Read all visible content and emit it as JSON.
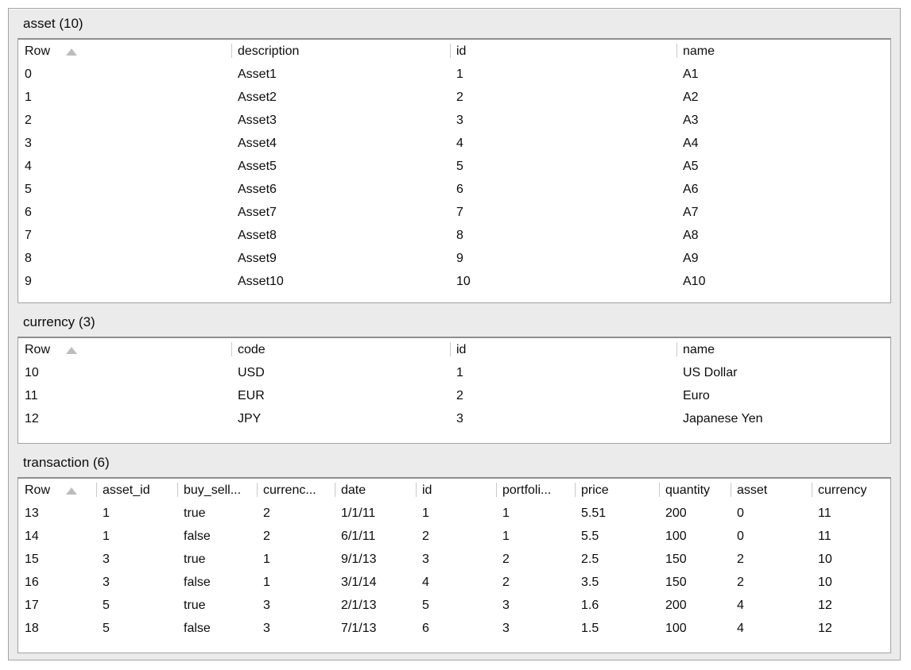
{
  "tables": [
    {
      "title": "asset (10)",
      "sort": {
        "column": "Row",
        "direction": "ascending"
      },
      "columns": [
        "Row",
        "description",
        "id",
        "name"
      ],
      "rows": [
        [
          "0",
          "Asset1",
          "1",
          "A1"
        ],
        [
          "1",
          "Asset2",
          "2",
          "A2"
        ],
        [
          "2",
          "Asset3",
          "3",
          "A3"
        ],
        [
          "3",
          "Asset4",
          "4",
          "A4"
        ],
        [
          "4",
          "Asset5",
          "5",
          "A5"
        ],
        [
          "5",
          "Asset6",
          "6",
          "A6"
        ],
        [
          "6",
          "Asset7",
          "7",
          "A7"
        ],
        [
          "7",
          "Asset8",
          "8",
          "A8"
        ],
        [
          "8",
          "Asset9",
          "9",
          "A9"
        ],
        [
          "9",
          "Asset10",
          "10",
          "A10"
        ]
      ]
    },
    {
      "title": "currency (3)",
      "sort": {
        "column": "Row",
        "direction": "ascending"
      },
      "columns": [
        "Row",
        "code",
        "id",
        "name"
      ],
      "rows": [
        [
          "10",
          "USD",
          "1",
          "US Dollar"
        ],
        [
          "11",
          "EUR",
          "2",
          "Euro"
        ],
        [
          "12",
          "JPY",
          "3",
          "Japanese Yen"
        ]
      ]
    },
    {
      "title": "transaction (6)",
      "sort": {
        "column": "Row",
        "direction": "ascending"
      },
      "columns": [
        "Row",
        "asset_id",
        "buy_sell...",
        "currenc...",
        "date",
        "id",
        "portfoli...",
        "price",
        "quantity",
        "asset",
        "currency"
      ],
      "rows": [
        [
          "13",
          "1",
          "true",
          "2",
          "1/1/11",
          "1",
          "1",
          "5.51",
          "200",
          "0",
          "11"
        ],
        [
          "14",
          "1",
          "false",
          "2",
          "6/1/11",
          "2",
          "1",
          "5.5",
          "100",
          "0",
          "11"
        ],
        [
          "15",
          "3",
          "true",
          "1",
          "9/1/13",
          "3",
          "2",
          "2.5",
          "150",
          "2",
          "10"
        ],
        [
          "16",
          "3",
          "false",
          "1",
          "3/1/14",
          "4",
          "2",
          "3.5",
          "150",
          "2",
          "10"
        ],
        [
          "17",
          "5",
          "true",
          "3",
          "2/1/13",
          "5",
          "3",
          "1.6",
          "200",
          "4",
          "12"
        ],
        [
          "18",
          "5",
          "false",
          "3",
          "7/1/13",
          "6",
          "3",
          "1.5",
          "100",
          "4",
          "12"
        ]
      ]
    }
  ],
  "icons": {
    "sort_ascending": "triangle-up"
  },
  "colors": {
    "panel_background": "#ebebeb",
    "table_background": "#ffffff",
    "panel_border": "#a3a3a3",
    "table_border": "#a2a2a2",
    "table_border_top": "#8e8e8e",
    "header_separator": "#c9c9c9",
    "sort_arrow": "#bdbdbd",
    "text": "#0c0c0c"
  }
}
